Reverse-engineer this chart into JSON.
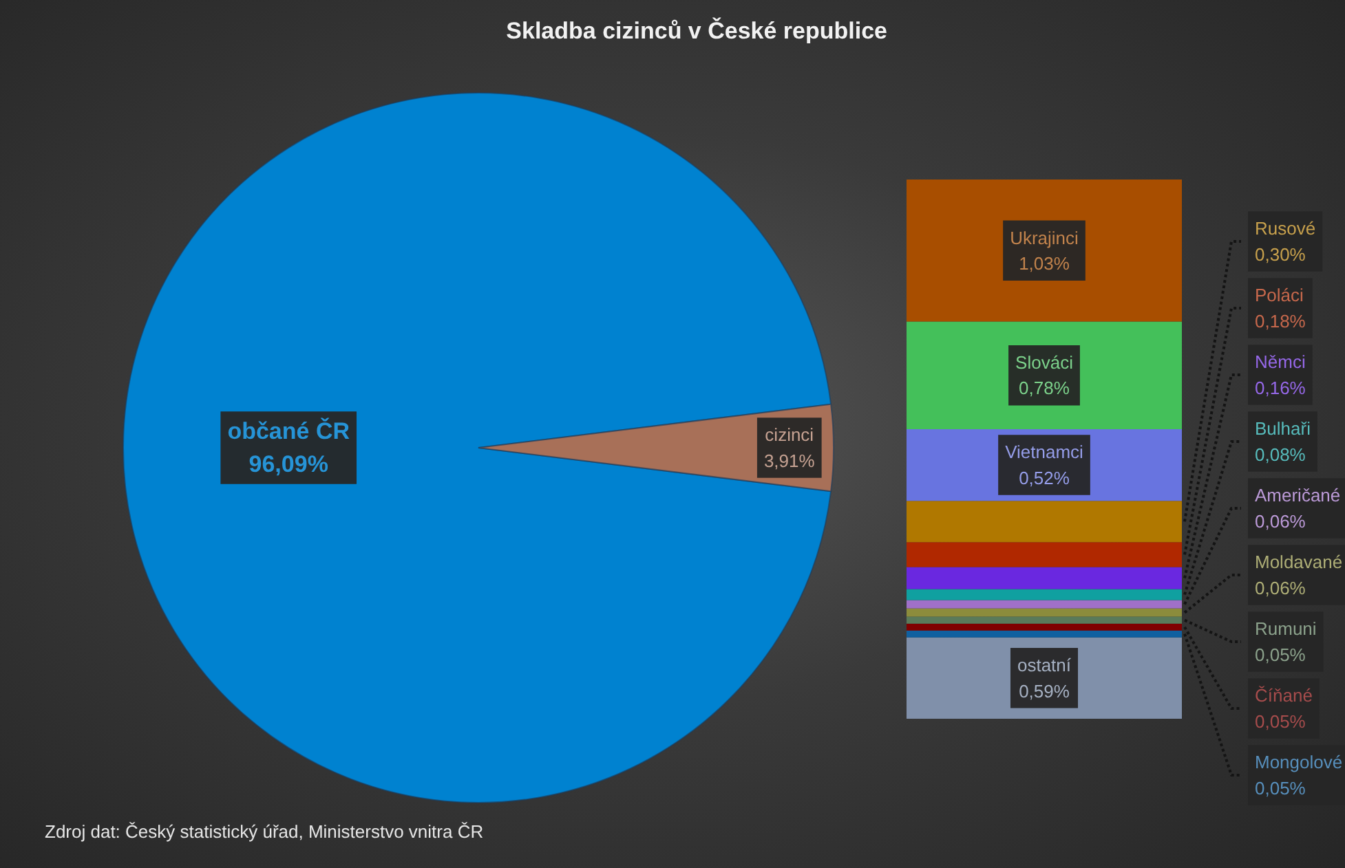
{
  "chart_data": [
    {
      "type": "pie",
      "title": "Skladba cizinců v České republice",
      "categories": [
        "občané ČR",
        "cizinci"
      ],
      "values": [
        96.09,
        3.91
      ],
      "colors": [
        "#0082d0",
        "#a87058"
      ],
      "value_labels": [
        "96,09%",
        "3,91%"
      ],
      "annotations": [
        "Zdroj dat: Český statistický úřad, Ministerstvo vnitra ČR"
      ]
    },
    {
      "type": "bar",
      "stacked": true,
      "categories": [
        null
      ],
      "series": [
        {
          "name": "ostatní",
          "color": "#8090aa",
          "values": [
            0.59
          ],
          "value_labels": [
            "0,59%"
          ]
        },
        {
          "name": "Mongolové",
          "color": "#1060a0",
          "values": [
            0.05
          ],
          "value_labels": [
            "0,05%"
          ]
        },
        {
          "name": "Číňané",
          "color": "#800000",
          "values": [
            0.05
          ],
          "value_labels": [
            "0,05%"
          ]
        },
        {
          "name": "Rumuni",
          "color": "#5a7a5a",
          "values": [
            0.05
          ],
          "value_labels": [
            "0,05%"
          ]
        },
        {
          "name": "Moldavané",
          "color": "#8c8c3c",
          "values": [
            0.06
          ],
          "value_labels": [
            "0,06%"
          ]
        },
        {
          "name": "Američané",
          "color": "#a070c8",
          "values": [
            0.06
          ],
          "value_labels": [
            "0,06%"
          ]
        },
        {
          "name": "Bulhaři",
          "color": "#10a0a0",
          "values": [
            0.08
          ],
          "value_labels": [
            "0,08%"
          ]
        },
        {
          "name": "Němci",
          "color": "#6a28e0",
          "values": [
            0.16
          ],
          "value_labels": [
            "0,16%"
          ]
        },
        {
          "name": "Poláci",
          "color": "#b02800",
          "values": [
            0.18
          ],
          "value_labels": [
            "0,18%"
          ]
        },
        {
          "name": "Rusové",
          "color": "#b07800",
          "values": [
            0.3
          ],
          "value_labels": [
            "0,30%"
          ]
        },
        {
          "name": "Vietnamci",
          "color": "#6874e0",
          "values": [
            0.52
          ],
          "value_labels": [
            "0,52%"
          ]
        },
        {
          "name": "Slováci",
          "color": "#44c05a",
          "values": [
            0.78
          ],
          "value_labels": [
            "0,78%"
          ]
        },
        {
          "name": "Ukrajinci",
          "color": "#a84e00",
          "values": [
            1.03
          ],
          "value_labels": [
            "1,03%"
          ]
        }
      ]
    }
  ]
}
